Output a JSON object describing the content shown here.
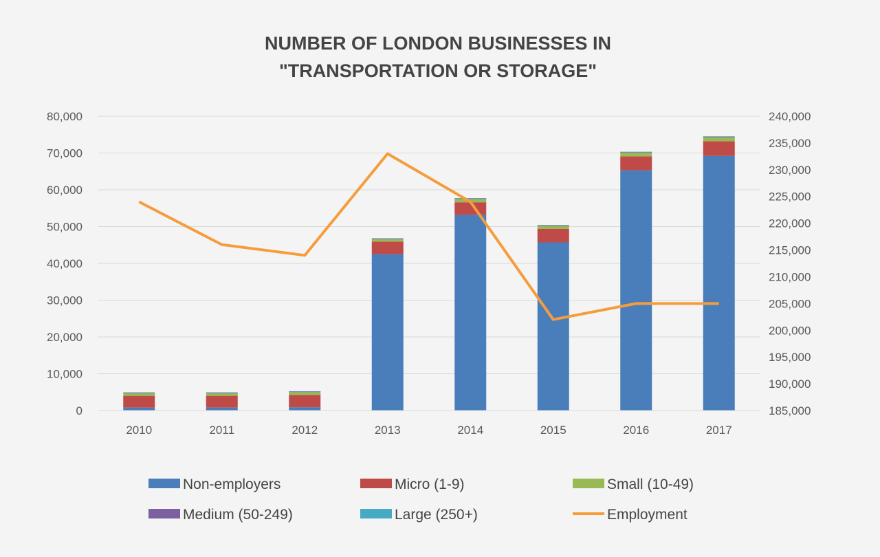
{
  "chart_data": {
    "type": "bar",
    "title_lines": [
      "NUMBER OF LONDON BUSINESSES IN",
      "\"TRANSPORTATION OR STORAGE\""
    ],
    "categories": [
      "2010",
      "2011",
      "2012",
      "2013",
      "2014",
      "2015",
      "2016",
      "2017"
    ],
    "stacked": true,
    "y_left": {
      "min": 0,
      "max": 80000,
      "ticks": [
        0,
        10000,
        20000,
        30000,
        40000,
        50000,
        60000,
        70000,
        80000
      ],
      "tick_labels": [
        "0",
        "10,000",
        "20,000",
        "30,000",
        "40,000",
        "50,000",
        "60,000",
        "70,000",
        "80,000"
      ]
    },
    "y_right": {
      "min": 185000,
      "max": 240000,
      "ticks": [
        185000,
        190000,
        195000,
        200000,
        205000,
        210000,
        215000,
        220000,
        225000,
        230000,
        235000,
        240000
      ],
      "tick_labels": [
        "185,000",
        "190,000",
        "195,000",
        "200,000",
        "205,000",
        "210,000",
        "215,000",
        "220,000",
        "225,000",
        "230,000",
        "235,000",
        "240,000"
      ]
    },
    "grid": true,
    "legend_position": "bottom",
    "series": [
      {
        "name": "Non-employers",
        "type": "bar",
        "axis": "left",
        "color": "#4a7ebb",
        "values": [
          800,
          800,
          900,
          42500,
          53200,
          45700,
          65300,
          69200
        ]
      },
      {
        "name": "Micro (1-9)",
        "type": "bar",
        "axis": "left",
        "color": "#be4b48",
        "values": [
          3200,
          3200,
          3300,
          3400,
          3400,
          3700,
          3800,
          4000
        ]
      },
      {
        "name": "Small (10-49)",
        "type": "bar",
        "axis": "left",
        "color": "#98b954",
        "values": [
          700,
          700,
          800,
          700,
          900,
          800,
          1000,
          1100
        ]
      },
      {
        "name": "Medium (50-249)",
        "type": "bar",
        "axis": "left",
        "color": "#7d60a0",
        "values": [
          150,
          150,
          150,
          150,
          150,
          150,
          150,
          150
        ]
      },
      {
        "name": "Large (250+)",
        "type": "bar",
        "axis": "left",
        "color": "#46aac5",
        "values": [
          100,
          100,
          100,
          100,
          100,
          100,
          100,
          100
        ]
      },
      {
        "name": "Employment",
        "type": "line",
        "axis": "right",
        "color": "#f59d3d",
        "values": [
          224000,
          216000,
          214000,
          233000,
          224000,
          202000,
          205000,
          205000
        ]
      }
    ]
  }
}
